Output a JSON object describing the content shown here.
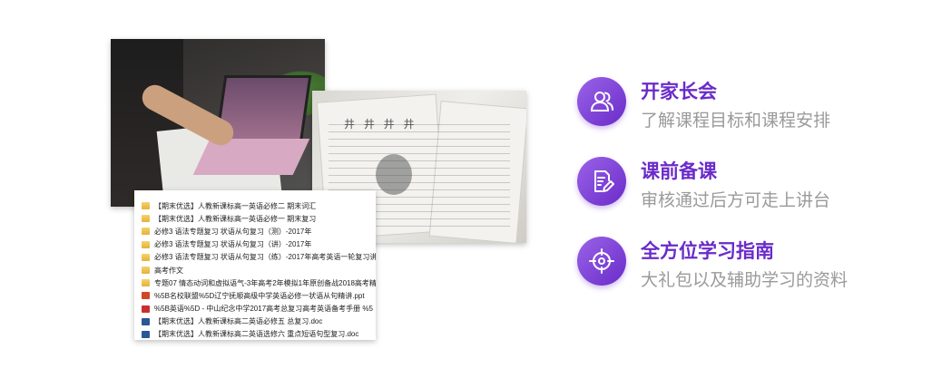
{
  "file_list": [
    {
      "type": "folder",
      "name": "【期末优选】人教新课标高一英语必修二 期末词汇"
    },
    {
      "type": "folder",
      "name": "【期末优选】人教新课标高一英语必修一 期末复习"
    },
    {
      "type": "folder",
      "name": "必修3 语法专题复习 状语从句复习（测）-2017年"
    },
    {
      "type": "folder",
      "name": "必修3 语法专题复习 状语从句复习（讲）-2017年"
    },
    {
      "type": "folder",
      "name": "必修3 语法专题复习 状语从句复习（练）-2017年高考英语一轮复习讲"
    },
    {
      "type": "folder",
      "name": "高考作文"
    },
    {
      "type": "folder",
      "name": "专题07 情态动词和虚拟语气-3年高考2年模拟1年原创备战2018高考精"
    },
    {
      "type": "ppt",
      "name": "%5B名校联盟%5D辽宁抚顺高级中学英语必修一状语从句精讲.ppt"
    },
    {
      "type": "pdf",
      "name": "%5B英语%5D - 中山纪念中学2017高考总复习高考英语备考手册  %5"
    },
    {
      "type": "doc",
      "name": "【期末优选】人教新课标高二英语必修五 总复习.doc"
    },
    {
      "type": "doc",
      "name": "【期末优选】人教新课标高二英语选修六 重点短语句型复习.doc"
    }
  ],
  "photo_papers": {
    "header": "井 井 井 井"
  },
  "features": [
    {
      "icon": "people-icon",
      "title": "开家长会",
      "desc": "了解课程目标和课程安排"
    },
    {
      "icon": "edit-document-icon",
      "title": "课前备课",
      "desc": "审核通过后方可走上讲台"
    },
    {
      "icon": "target-icon",
      "title": "全方位学习指南",
      "desc": "大礼包以及辅助学习的资料"
    }
  ],
  "colors": {
    "accent": "#6a2bc9",
    "accent_light": "#9a63e8",
    "desc_text": "#9a9a9a"
  }
}
